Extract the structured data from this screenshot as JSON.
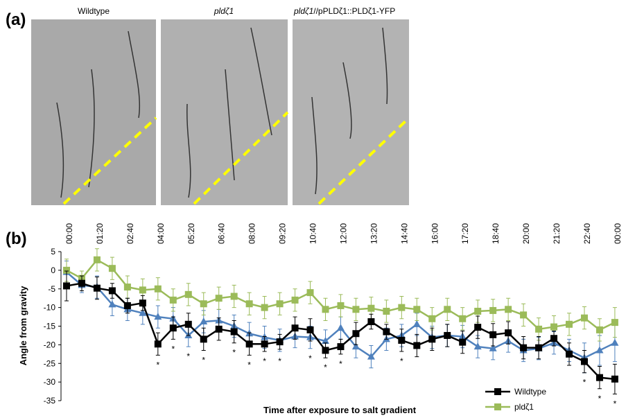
{
  "panel_a": {
    "panel_label": "(a)",
    "labels": [
      "Wildtype",
      "pldζ1",
      "pldζ1",
      "//pPLDζ1::PLDζ1-YFP"
    ]
  },
  "chart_data": {
    "type": "line",
    "panel_label": "(b)",
    "x_label": "Time after exposure to salt gradient",
    "y_label": "Angle from gravity",
    "categories": [
      "00:00",
      null,
      "01:20",
      null,
      "02:40",
      null,
      "04:00",
      null,
      "05:20",
      null,
      "06:40",
      null,
      "08:00",
      null,
      "09:20",
      null,
      "10:40",
      null,
      "12:00",
      null,
      "13:20",
      null,
      "14:40",
      null,
      "16:00",
      null,
      "17:20",
      null,
      "18:40",
      null,
      "20:00",
      null,
      "21:20",
      null,
      "22:40",
      null,
      "00:00"
    ],
    "series": [
      {
        "name": "Wildtype",
        "color": "#000000",
        "marker": "square",
        "values": [
          -4.2,
          -3.5,
          -4.8,
          -5.5,
          -9.5,
          -8.8,
          -19.8,
          -15.5,
          -14.5,
          -18.5,
          -15.8,
          -16.5,
          -19.8,
          -19.8,
          -19.2,
          -15.5,
          -16.0,
          -21.5,
          -20.5,
          -17.0,
          -13.8,
          -16.5,
          -18.8,
          -20.2,
          -18.5,
          -17.5,
          -19.3,
          -15.3,
          -17.3,
          -16.8,
          -20.8,
          -20.8,
          -18.3,
          -22.5,
          -24.5,
          -28.8,
          -29.2
        ],
        "errors": [
          4,
          2,
          3,
          2,
          2,
          2,
          3,
          3,
          3,
          3,
          3,
          3,
          3,
          2,
          2,
          3,
          3,
          2,
          2,
          3,
          2,
          2,
          3,
          3,
          3,
          3,
          3,
          3,
          3,
          3,
          3,
          3,
          2,
          3,
          3,
          3,
          4
        ]
      },
      {
        "name": "pldζ1",
        "color": "#9bbb59",
        "marker": "square",
        "values": [
          0,
          -2.2,
          2.8,
          0.5,
          -4.5,
          -5.3,
          -5.0,
          -8.0,
          -6.5,
          -9.0,
          -7.5,
          -7.0,
          -9.0,
          -10.0,
          -9.0,
          -8.0,
          -6.0,
          -10.5,
          -9.5,
          -10.5,
          -10.2,
          -11.0,
          -10.0,
          -10.5,
          -13.0,
          -10.5,
          -13.0,
          -11.0,
          -10.8,
          -10.5,
          -12.0,
          -15.8,
          -15.2,
          -14.5,
          -12.8,
          -16.0,
          -14.0
        ],
        "errors": [
          3,
          2,
          3,
          3,
          3,
          3,
          3,
          3,
          3,
          3,
          3,
          3,
          3,
          3,
          3,
          3,
          3,
          3,
          3,
          3,
          3,
          3,
          3,
          3,
          3,
          3,
          3,
          3,
          3,
          3,
          3,
          3,
          3,
          3,
          3,
          3,
          4
        ]
      },
      {
        "color": "#4f81bd",
        "marker": "triangle",
        "values": [
          -0.5,
          -4.0,
          -4.5,
          -9.2,
          -10.5,
          -11.5,
          -12.5,
          -13.0,
          -17.5,
          -13.8,
          -13.5,
          -15.0,
          -17.0,
          -18.0,
          -18.8,
          -17.8,
          -18.0,
          -19.0,
          -15.5,
          -20.5,
          -23.2,
          -18.5,
          -17.5,
          -14.5,
          -18.0,
          -17.5,
          -17.8,
          -20.5,
          -21.0,
          -19.0,
          -21.5,
          -21.0,
          -19.5,
          -21.5,
          -23.5,
          -21.5,
          -19.5
        ],
        "errors": [
          3,
          2,
          3,
          3,
          3,
          3,
          3,
          3,
          3,
          3,
          3,
          3,
          3,
          3,
          3,
          3,
          3,
          3,
          3,
          3,
          3,
          3,
          3,
          3,
          3,
          3,
          3,
          3,
          3,
          3,
          3,
          3,
          3,
          3,
          4,
          4,
          5
        ]
      }
    ],
    "significance": {
      "label": "*",
      "color": "#9bbb59",
      "indices": [
        6,
        7,
        8,
        9,
        11,
        12,
        13,
        14,
        16,
        17,
        18,
        22,
        34,
        35,
        36
      ]
    },
    "ylim": [
      -35,
      5
    ],
    "yticks": [
      5,
      0,
      -5,
      -10,
      -15,
      -20,
      -25,
      -30,
      -35
    ],
    "legend": "lower right"
  }
}
